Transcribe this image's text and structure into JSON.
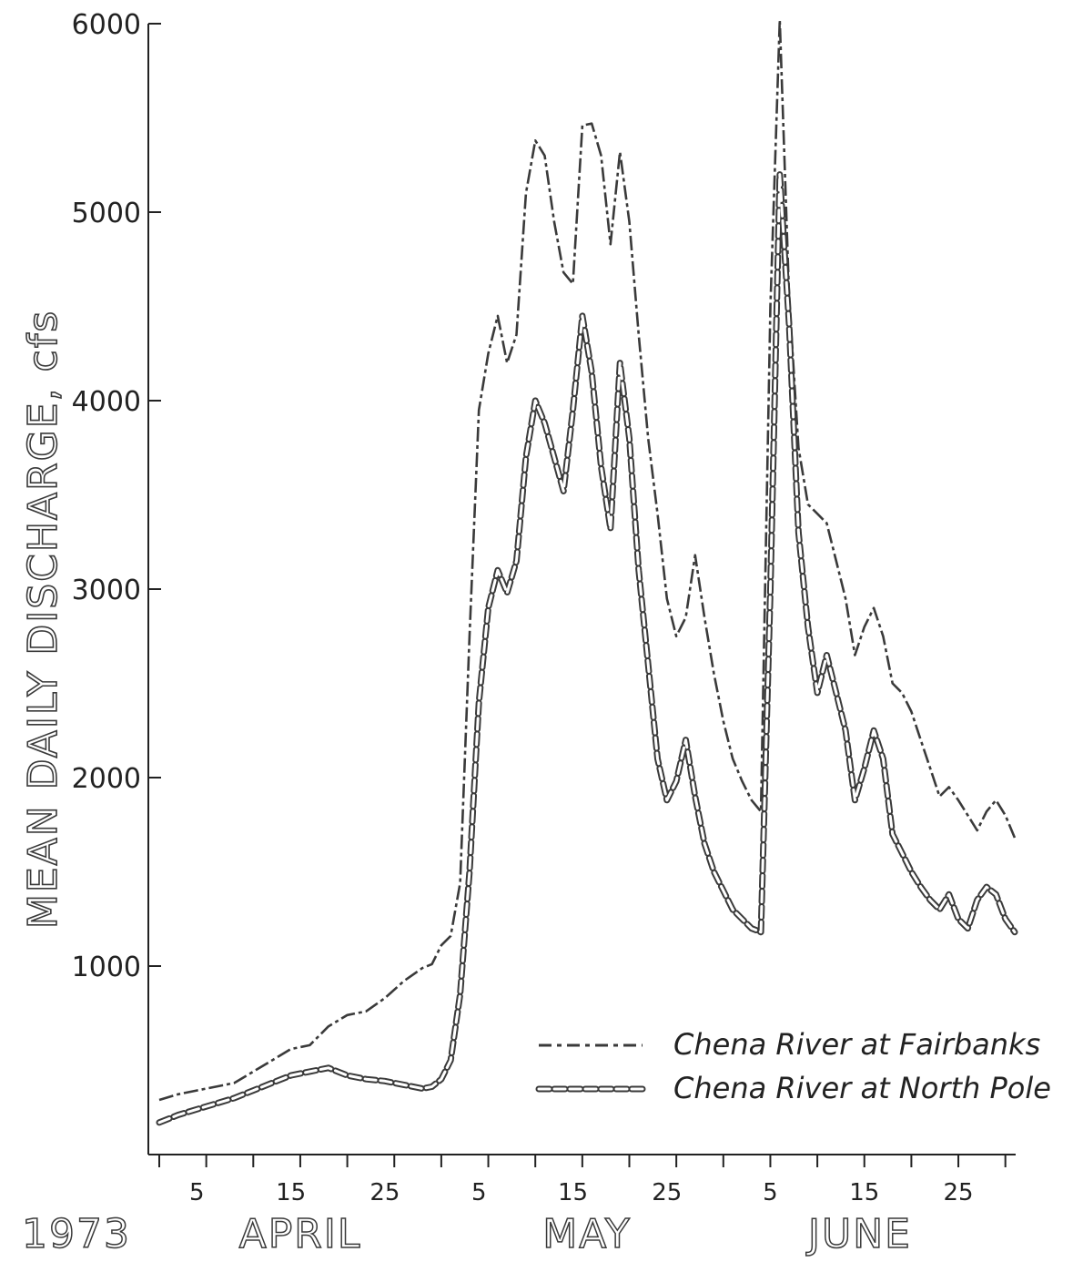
{
  "chart_data": {
    "type": "line",
    "title": "",
    "ylabel": "MEAN DAILY DISCHARGE, cfs",
    "xlabel": "",
    "year_label": "1973",
    "month_labels": [
      "APRIL",
      "MAY",
      "JUNE"
    ],
    "x_tick_labels": [
      "5",
      "15",
      "25",
      "5",
      "15",
      "25",
      "5",
      "15",
      "25"
    ],
    "y_tick_labels": [
      "1000",
      "2000",
      "3000",
      "4000",
      "5000",
      "6000"
    ],
    "ylim": [
      0,
      6000
    ],
    "grid": false,
    "legend_position": "lower-right",
    "series": [
      {
        "name": "Chena River at Fairbanks",
        "style": "dash",
        "color": "#3a3a3a",
        "points": [
          [
            "1973-04-01",
            290
          ],
          [
            "1973-04-03",
            320
          ],
          [
            "1973-04-05",
            340
          ],
          [
            "1973-04-07",
            360
          ],
          [
            "1973-04-09",
            380
          ],
          [
            "1973-04-11",
            440
          ],
          [
            "1973-04-13",
            500
          ],
          [
            "1973-04-15",
            560
          ],
          [
            "1973-04-17",
            580
          ],
          [
            "1973-04-19",
            680
          ],
          [
            "1973-04-21",
            740
          ],
          [
            "1973-04-23",
            760
          ],
          [
            "1973-04-25",
            830
          ],
          [
            "1973-04-27",
            920
          ],
          [
            "1973-04-29",
            990
          ],
          [
            "1973-04-30",
            1010
          ],
          [
            "1973-05-01",
            1110
          ],
          [
            "1973-05-02",
            1160
          ],
          [
            "1973-05-03",
            1440
          ],
          [
            "1973-05-04",
            2750
          ],
          [
            "1973-05-05",
            3950
          ],
          [
            "1973-05-06",
            4250
          ],
          [
            "1973-05-07",
            4450
          ],
          [
            "1973-05-08",
            4200
          ],
          [
            "1973-05-09",
            4350
          ],
          [
            "1973-05-10",
            5100
          ],
          [
            "1973-05-11",
            5380
          ],
          [
            "1973-05-12",
            5300
          ],
          [
            "1973-05-13",
            4950
          ],
          [
            "1973-05-14",
            4680
          ],
          [
            "1973-05-15",
            4620
          ],
          [
            "1973-05-16",
            5460
          ],
          [
            "1973-05-17",
            5470
          ],
          [
            "1973-05-18",
            5300
          ],
          [
            "1973-05-19",
            4830
          ],
          [
            "1973-05-20",
            5320
          ],
          [
            "1973-05-21",
            4950
          ],
          [
            "1973-05-22",
            4350
          ],
          [
            "1973-05-23",
            3800
          ],
          [
            "1973-05-24",
            3400
          ],
          [
            "1973-05-25",
            2950
          ],
          [
            "1973-05-26",
            2750
          ],
          [
            "1973-05-27",
            2850
          ],
          [
            "1973-05-28",
            3180
          ],
          [
            "1973-05-29",
            2850
          ],
          [
            "1973-05-30",
            2550
          ],
          [
            "1973-05-31",
            2300
          ],
          [
            "1973-06-01",
            2100
          ],
          [
            "1973-06-02",
            1980
          ],
          [
            "1973-06-03",
            1880
          ],
          [
            "1973-06-04",
            1820
          ],
          [
            "1973-06-05",
            4500
          ],
          [
            "1973-06-06",
            6020
          ],
          [
            "1973-06-07",
            4550
          ],
          [
            "1973-06-08",
            3750
          ],
          [
            "1973-06-09",
            3450
          ],
          [
            "1973-06-10",
            3400
          ],
          [
            "1973-06-11",
            3350
          ],
          [
            "1973-06-12",
            3150
          ],
          [
            "1973-06-13",
            2950
          ],
          [
            "1973-06-14",
            2650
          ],
          [
            "1973-06-15",
            2800
          ],
          [
            "1973-06-16",
            2900
          ],
          [
            "1973-06-17",
            2750
          ],
          [
            "1973-06-18",
            2500
          ],
          [
            "1973-06-19",
            2450
          ],
          [
            "1973-06-20",
            2350
          ],
          [
            "1973-06-21",
            2200
          ],
          [
            "1973-06-22",
            2050
          ],
          [
            "1973-06-23",
            1900
          ],
          [
            "1973-06-24",
            1950
          ],
          [
            "1973-06-25",
            1880
          ],
          [
            "1973-06-26",
            1800
          ],
          [
            "1973-06-27",
            1720
          ],
          [
            "1973-06-28",
            1820
          ],
          [
            "1973-06-29",
            1880
          ],
          [
            "1973-06-30",
            1800
          ],
          [
            "1973-07-01",
            1680
          ]
        ]
      },
      {
        "name": "Chena River at North Pole",
        "style": "chain",
        "color": "#3a3a3a",
        "points": [
          [
            "1973-04-01",
            170
          ],
          [
            "1973-04-03",
            210
          ],
          [
            "1973-04-05",
            240
          ],
          [
            "1973-04-07",
            270
          ],
          [
            "1973-04-09",
            300
          ],
          [
            "1973-04-11",
            340
          ],
          [
            "1973-04-13",
            380
          ],
          [
            "1973-04-15",
            420
          ],
          [
            "1973-04-17",
            440
          ],
          [
            "1973-04-19",
            460
          ],
          [
            "1973-04-21",
            420
          ],
          [
            "1973-04-23",
            400
          ],
          [
            "1973-04-25",
            390
          ],
          [
            "1973-04-27",
            370
          ],
          [
            "1973-04-29",
            350
          ],
          [
            "1973-04-30",
            360
          ],
          [
            "1973-05-01",
            400
          ],
          [
            "1973-05-02",
            500
          ],
          [
            "1973-05-03",
            850
          ],
          [
            "1973-05-04",
            1500
          ],
          [
            "1973-05-05",
            2400
          ],
          [
            "1973-05-06",
            2900
          ],
          [
            "1973-05-07",
            3100
          ],
          [
            "1973-05-08",
            2980
          ],
          [
            "1973-05-09",
            3150
          ],
          [
            "1973-05-10",
            3700
          ],
          [
            "1973-05-11",
            4000
          ],
          [
            "1973-05-12",
            3880
          ],
          [
            "1973-05-13",
            3700
          ],
          [
            "1973-05-14",
            3520
          ],
          [
            "1973-05-15",
            3950
          ],
          [
            "1973-05-16",
            4450
          ],
          [
            "1973-05-17",
            4150
          ],
          [
            "1973-05-18",
            3650
          ],
          [
            "1973-05-19",
            3320
          ],
          [
            "1973-05-20",
            4200
          ],
          [
            "1973-05-21",
            3800
          ],
          [
            "1973-05-22",
            3100
          ],
          [
            "1973-05-23",
            2600
          ],
          [
            "1973-05-24",
            2100
          ],
          [
            "1973-05-25",
            1880
          ],
          [
            "1973-05-26",
            1980
          ],
          [
            "1973-05-27",
            2200
          ],
          [
            "1973-05-28",
            1900
          ],
          [
            "1973-05-29",
            1650
          ],
          [
            "1973-05-30",
            1500
          ],
          [
            "1973-05-31",
            1400
          ],
          [
            "1973-06-01",
            1300
          ],
          [
            "1973-06-02",
            1250
          ],
          [
            "1973-06-03",
            1200
          ],
          [
            "1973-06-04",
            1180
          ],
          [
            "1973-06-05",
            3000
          ],
          [
            "1973-06-06",
            5200
          ],
          [
            "1973-06-07",
            4400
          ],
          [
            "1973-06-08",
            3300
          ],
          [
            "1973-06-09",
            2800
          ],
          [
            "1973-06-10",
            2450
          ],
          [
            "1973-06-11",
            2650
          ],
          [
            "1973-06-12",
            2450
          ],
          [
            "1973-06-13",
            2250
          ],
          [
            "1973-06-14",
            1880
          ],
          [
            "1973-06-15",
            2050
          ],
          [
            "1973-06-16",
            2250
          ],
          [
            "1973-06-17",
            2100
          ],
          [
            "1973-06-18",
            1700
          ],
          [
            "1973-06-19",
            1600
          ],
          [
            "1973-06-20",
            1500
          ],
          [
            "1973-06-21",
            1420
          ],
          [
            "1973-06-22",
            1350
          ],
          [
            "1973-06-23",
            1300
          ],
          [
            "1973-06-24",
            1380
          ],
          [
            "1973-06-25",
            1250
          ],
          [
            "1973-06-26",
            1200
          ],
          [
            "1973-06-27",
            1350
          ],
          [
            "1973-06-28",
            1420
          ],
          [
            "1973-06-29",
            1380
          ],
          [
            "1973-06-30",
            1250
          ],
          [
            "1973-07-01",
            1180
          ]
        ]
      }
    ]
  }
}
